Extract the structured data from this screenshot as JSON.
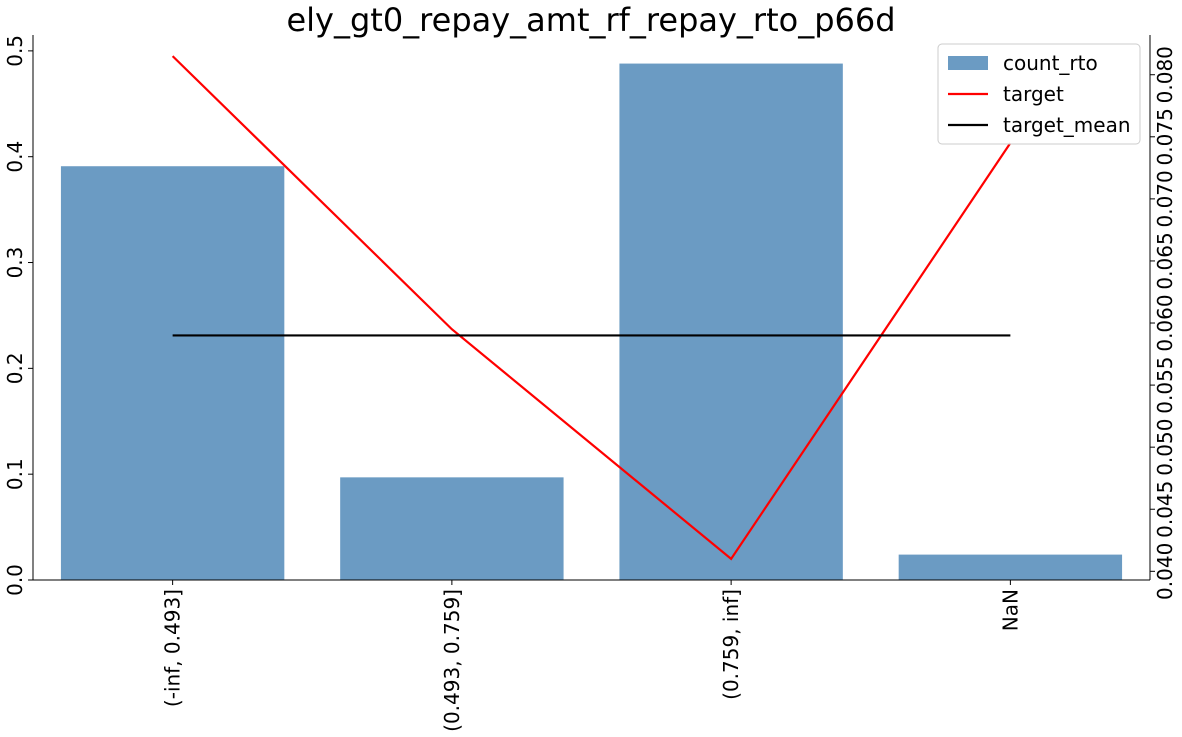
{
  "chart_data": {
    "type": "bar",
    "title": "ely_gt0_repay_amt_rf_repay_rto_p66d",
    "categories": [
      "(-inf, 0.493]",
      "(0.493, 0.759]",
      "(0.759, inf]",
      "NaN"
    ],
    "series": [
      {
        "name": "count_rto",
        "type": "bar",
        "axis": "left",
        "color": "#6b9bc3",
        "values": [
          0.391,
          0.097,
          0.488,
          0.024
        ]
      },
      {
        "name": "target",
        "type": "line",
        "axis": "right",
        "color": "#ff0000",
        "values": [
          0.0815,
          0.0595,
          0.041,
          0.0745
        ]
      },
      {
        "name": "target_mean",
        "type": "line",
        "axis": "right",
        "color": "#000000",
        "values": [
          0.059,
          0.059,
          0.059,
          0.059
        ]
      }
    ],
    "y_left": {
      "ylim": [
        0,
        0.515
      ],
      "ticks": [
        0.0,
        0.1,
        0.2,
        0.3,
        0.4,
        0.5
      ],
      "tick_labels": [
        "0.0",
        "0.1",
        "0.2",
        "0.3",
        "0.4",
        "0.5"
      ]
    },
    "y_right": {
      "ylim": [
        0.0393,
        0.0832
      ],
      "ticks": [
        0.04,
        0.045,
        0.05,
        0.055,
        0.06,
        0.065,
        0.07,
        0.075,
        0.08
      ],
      "tick_labels": [
        "0.040",
        "0.045",
        "0.050",
        "0.055",
        "0.060",
        "0.065",
        "0.070",
        "0.075",
        "0.080"
      ]
    },
    "xlabel": "",
    "ylabel": "",
    "grid": false,
    "legend": {
      "position": "top-right",
      "entries": [
        "count_rto",
        "target",
        "target_mean"
      ]
    }
  }
}
